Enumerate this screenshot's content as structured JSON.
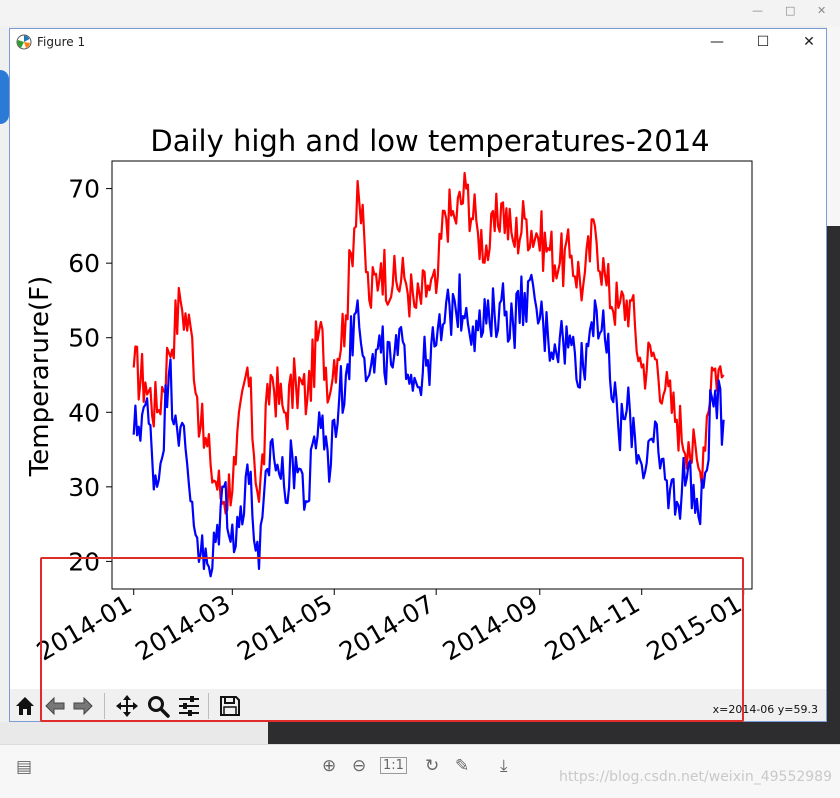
{
  "window": {
    "title": "Figure 1",
    "minimize_glyph": "—",
    "maximize_glyph": "☐",
    "close_glyph": "✕",
    "outer_controls": [
      "—",
      "□",
      "✕"
    ]
  },
  "toolbar": {
    "buttons": [
      "home-icon",
      "back-icon",
      "forward-icon",
      "pan-icon",
      "zoom-icon",
      "configure-subplots-icon",
      "save-icon"
    ],
    "coords_readout": "x=2014-06 y=59.3"
  },
  "viewer": {
    "watermark": "https://blog.csdn.net/weixin_49552989",
    "icons": [
      "zoom-in-icon",
      "zoom-out-icon",
      "fit-icon",
      "rotate-icon",
      "edit-icon",
      "download-icon"
    ]
  },
  "colors": {
    "high": "#ff0000",
    "low": "#0000ff",
    "highlight_box": "#e02b2b"
  },
  "chart_data": {
    "type": "line",
    "title": "Daily high and low temperatures-2014",
    "xlabel": "",
    "ylabel": "Temperarure(F)",
    "x_range": [
      "2013-12-19",
      "2015-01-06"
    ],
    "ylim": [
      16.3,
      73.7
    ],
    "yticks": [
      20,
      30,
      40,
      50,
      60,
      70
    ],
    "xticks": [
      "2014-01",
      "2014-03",
      "2014-05",
      "2014-07",
      "2014-09",
      "2014-11",
      "2015-01"
    ],
    "grid": false,
    "legend": "none",
    "series": [
      {
        "color": "#ff0000",
        "x": [
          "2014-01-01",
          "2014-01-08",
          "2014-01-15",
          "2014-01-22",
          "2014-01-29",
          "2014-02-05",
          "2014-02-10",
          "2014-02-16",
          "2014-02-24",
          "2014-03-03",
          "2014-03-10",
          "2014-03-17",
          "2014-03-24",
          "2014-04-01",
          "2014-04-08",
          "2014-04-15",
          "2014-04-22",
          "2014-04-29",
          "2014-05-01",
          "2014-05-08",
          "2014-05-15",
          "2014-05-22",
          "2014-05-29",
          "2014-06-05",
          "2014-06-12",
          "2014-06-19",
          "2014-06-26",
          "2014-07-01",
          "2014-07-06",
          "2014-07-12",
          "2014-07-19",
          "2014-07-26",
          "2014-08-02",
          "2014-08-09",
          "2014-08-16",
          "2014-08-23",
          "2014-08-30",
          "2014-09-06",
          "2014-09-13",
          "2014-09-20",
          "2014-09-27",
          "2014-10-04",
          "2014-10-11",
          "2014-10-18",
          "2014-10-25",
          "2014-11-01",
          "2014-11-08",
          "2014-11-15",
          "2014-11-22",
          "2014-11-29",
          "2014-12-06",
          "2014-12-13",
          "2014-12-20"
        ],
        "y": [
          46,
          44,
          40,
          48,
          55,
          50,
          38,
          33,
          28,
          33,
          46,
          28,
          45,
          40,
          44,
          42,
          51,
          43,
          47,
          53,
          71,
          55,
          60,
          57,
          58,
          54,
          57,
          56,
          67,
          66,
          70,
          64,
          62,
          68,
          63,
          66,
          64,
          62,
          60,
          61,
          57,
          65,
          57,
          54,
          55,
          46,
          48,
          43,
          39,
          36,
          32,
          46,
          45
        ]
      },
      {
        "color": "#0000ff",
        "x": [
          "2014-01-01",
          "2014-01-08",
          "2014-01-15",
          "2014-01-22",
          "2014-01-29",
          "2014-02-05",
          "2014-02-10",
          "2014-02-16",
          "2014-02-24",
          "2014-03-03",
          "2014-03-10",
          "2014-03-17",
          "2014-03-24",
          "2014-04-01",
          "2014-04-08",
          "2014-04-15",
          "2014-04-22",
          "2014-04-29",
          "2014-05-01",
          "2014-05-08",
          "2014-05-15",
          "2014-05-22",
          "2014-05-29",
          "2014-06-05",
          "2014-06-12",
          "2014-06-19",
          "2014-06-26",
          "2014-07-01",
          "2014-07-06",
          "2014-07-12",
          "2014-07-19",
          "2014-07-26",
          "2014-08-02",
          "2014-08-09",
          "2014-08-16",
          "2014-08-23",
          "2014-08-30",
          "2014-09-06",
          "2014-09-13",
          "2014-09-20",
          "2014-09-27",
          "2014-10-04",
          "2014-10-11",
          "2014-10-18",
          "2014-10-25",
          "2014-11-01",
          "2014-11-08",
          "2014-11-15",
          "2014-11-22",
          "2014-11-29",
          "2014-12-06",
          "2014-12-13",
          "2014-12-20"
        ],
        "y": [
          37,
          41,
          30,
          45,
          38,
          28,
          21,
          18,
          30,
          22,
          33,
          19,
          36,
          30,
          34,
          28,
          40,
          33,
          39,
          45,
          55,
          45,
          48,
          46,
          49,
          44,
          47,
          49,
          52,
          55,
          54,
          51,
          52,
          55,
          52,
          56,
          54,
          50,
          50,
          49,
          46,
          55,
          48,
          38,
          40,
          33,
          36,
          31,
          28,
          33,
          25,
          42,
          39
        ]
      }
    ]
  }
}
